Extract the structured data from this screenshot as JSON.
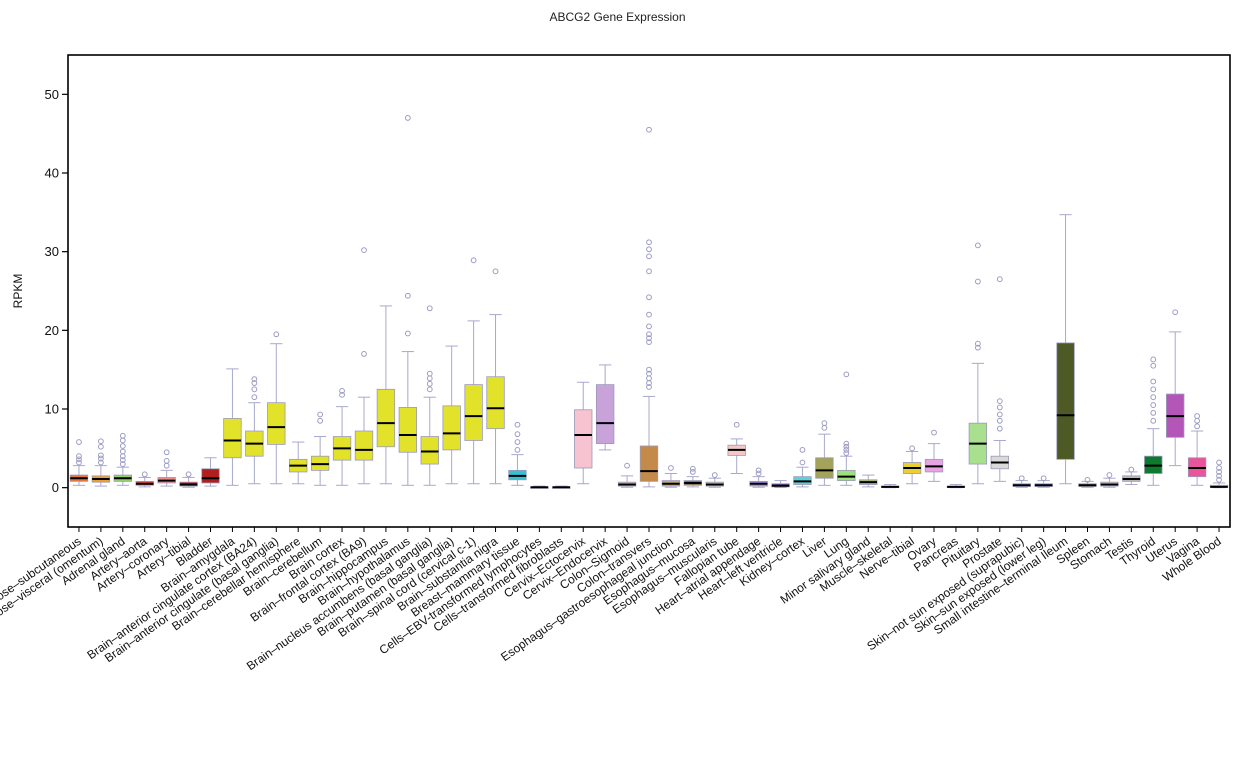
{
  "chart_data": {
    "type": "box",
    "title": "ABCG2 Gene Expression",
    "ylabel": "RPKM",
    "xlabel": "",
    "ylim": [
      -5,
      55
    ],
    "yticks": [
      0,
      10,
      20,
      30,
      40,
      50
    ],
    "grid": false,
    "legend": "none",
    "boxes": [
      {
        "label": "Adipose–subcutaneous",
        "q1": 0.8,
        "median": 1.2,
        "q3": 1.6,
        "whisker_low": 0.3,
        "whisker_high": 2.8,
        "outliers": [
          3.2,
          3.6,
          4.0,
          5.8
        ],
        "color": "#e8743b"
      },
      {
        "label": "Adipose–visceral (omentum)",
        "q1": 0.7,
        "median": 1.1,
        "q3": 1.5,
        "whisker_low": 0.2,
        "whisker_high": 2.8,
        "outliers": [
          3.2,
          3.7,
          4.1,
          5.2,
          5.9
        ],
        "color": "#f0a030"
      },
      {
        "label": "Adrenal gland",
        "q1": 0.8,
        "median": 1.2,
        "q3": 1.6,
        "whisker_low": 0.3,
        "whisker_high": 2.6,
        "outliers": [
          3.0,
          3.5,
          4.0,
          4.6,
          5.3,
          6.0,
          6.6
        ],
        "color": "#8fd16a"
      },
      {
        "label": "Artery–aorta",
        "q1": 0.3,
        "median": 0.5,
        "q3": 0.8,
        "whisker_low": 0.1,
        "whisker_high": 1.3,
        "outliers": [
          1.7
        ],
        "color": "#e04848"
      },
      {
        "label": "Artery–coronary",
        "q1": 0.6,
        "median": 0.9,
        "q3": 1.3,
        "whisker_low": 0.2,
        "whisker_high": 2.2,
        "outliers": [
          2.8,
          3.4,
          4.5
        ],
        "color": "#ee8a8a"
      },
      {
        "label": "Artery–tibial",
        "q1": 0.2,
        "median": 0.4,
        "q3": 0.7,
        "whisker_low": 0.05,
        "whisker_high": 1.3,
        "outliers": [
          1.7
        ],
        "color": "#cc2222"
      },
      {
        "label": "Bladder",
        "q1": 0.6,
        "median": 1.2,
        "q3": 2.4,
        "whisker_low": 0.2,
        "whisker_high": 3.8,
        "outliers": [],
        "color": "#b01e1e"
      },
      {
        "label": "Brain–amygdala",
        "q1": 3.8,
        "median": 6.0,
        "q3": 8.8,
        "whisker_low": 0.3,
        "whisker_high": 15.1,
        "outliers": [],
        "color": "#e2e22a"
      },
      {
        "label": "Brain–anterior cingulate cortex (BA24)",
        "q1": 4.0,
        "median": 5.6,
        "q3": 7.2,
        "whisker_low": 0.5,
        "whisker_high": 10.8,
        "outliers": [
          11.5,
          12.5,
          13.3,
          13.8
        ],
        "color": "#e2e22a"
      },
      {
        "label": "Brain–anterior cingulate (basal ganglia)",
        "q1": 5.5,
        "median": 7.7,
        "q3": 10.8,
        "whisker_low": 0.5,
        "whisker_high": 18.3,
        "outliers": [
          19.5
        ],
        "color": "#e2e22a"
      },
      {
        "label": "Brain–cerebellar hemisphere",
        "q1": 2.0,
        "median": 2.8,
        "q3": 3.6,
        "whisker_low": 0.5,
        "whisker_high": 5.8,
        "outliers": [],
        "color": "#e2e22a"
      },
      {
        "label": "Brain–cerebellum",
        "q1": 2.2,
        "median": 3.0,
        "q3": 4.0,
        "whisker_low": 0.3,
        "whisker_high": 6.5,
        "outliers": [
          8.5,
          9.3
        ],
        "color": "#e2e22a"
      },
      {
        "label": "Brain cortex",
        "q1": 3.5,
        "median": 5.0,
        "q3": 6.5,
        "whisker_low": 0.3,
        "whisker_high": 10.3,
        "outliers": [
          11.8,
          12.3
        ],
        "color": "#e2e22a"
      },
      {
        "label": "Brain–frontal cortex (BA9)",
        "q1": 3.5,
        "median": 4.8,
        "q3": 7.2,
        "whisker_low": 0.5,
        "whisker_high": 11.5,
        "outliers": [
          17.0,
          30.2
        ],
        "color": "#e2e22a"
      },
      {
        "label": "Brain–hippocampus",
        "q1": 5.2,
        "median": 8.2,
        "q3": 12.5,
        "whisker_low": 0.5,
        "whisker_high": 23.1,
        "outliers": [],
        "color": "#e2e22a"
      },
      {
        "label": "Brain–hypothalamus",
        "q1": 4.5,
        "median": 6.7,
        "q3": 10.2,
        "whisker_low": 0.3,
        "whisker_high": 17.3,
        "outliers": [
          19.6,
          24.4,
          47.0
        ],
        "color": "#e2e22a"
      },
      {
        "label": "Brain–nucleus accumbens (basal ganglia)",
        "q1": 3.0,
        "median": 4.6,
        "q3": 6.5,
        "whisker_low": 0.3,
        "whisker_high": 11.5,
        "outliers": [
          12.5,
          13.2,
          13.9,
          14.5,
          22.8
        ],
        "color": "#e2e22a"
      },
      {
        "label": "Brain–putamen (basal ganglia)",
        "q1": 4.8,
        "median": 6.9,
        "q3": 10.4,
        "whisker_low": 0.5,
        "whisker_high": 18.0,
        "outliers": [],
        "color": "#e2e22a"
      },
      {
        "label": "Brain–spinal cord (cervical c-1)",
        "q1": 6.0,
        "median": 9.1,
        "q3": 13.1,
        "whisker_low": 0.5,
        "whisker_high": 21.2,
        "outliers": [
          28.9
        ],
        "color": "#e2e22a"
      },
      {
        "label": "Brain–substantia nigra",
        "q1": 7.5,
        "median": 10.1,
        "q3": 14.1,
        "whisker_low": 0.5,
        "whisker_high": 22.0,
        "outliers": [
          27.5
        ],
        "color": "#e2e22a"
      },
      {
        "label": "Breast–mammary tissue",
        "q1": 1.0,
        "median": 1.5,
        "q3": 2.2,
        "whisker_low": 0.3,
        "whisker_high": 4.2,
        "outliers": [
          4.8,
          5.8,
          6.8,
          8.0
        ],
        "color": "#33c3d6"
      },
      {
        "label": "Cells–EBV-transformed lymphocytes",
        "q1": 0.0,
        "median": 0.05,
        "q3": 0.1,
        "whisker_low": 0.0,
        "whisker_high": 0.2,
        "outliers": [],
        "color": "#c58adf"
      },
      {
        "label": "Cells–transformed fibroblasts",
        "q1": 0.0,
        "median": 0.05,
        "q3": 0.1,
        "whisker_low": 0.0,
        "whisker_high": 0.2,
        "outliers": [],
        "color": "#7aa6e0"
      },
      {
        "label": "Cervix–Ectocervix",
        "q1": 2.5,
        "median": 6.7,
        "q3": 9.9,
        "whisker_low": 0.5,
        "whisker_high": 13.4,
        "outliers": [],
        "color": "#f7c3d1"
      },
      {
        "label": "Cervix–Endocervix",
        "q1": 5.6,
        "median": 8.2,
        "q3": 13.1,
        "whisker_low": 4.8,
        "whisker_high": 15.6,
        "outliers": [],
        "color": "#c8a2d8"
      },
      {
        "label": "Colon–Sigmoid",
        "q1": 0.2,
        "median": 0.4,
        "q3": 0.7,
        "whisker_low": 0.05,
        "whisker_high": 1.5,
        "outliers": [
          2.8
        ],
        "color": "#d9b99b"
      },
      {
        "label": "Colon–transvers",
        "q1": 0.8,
        "median": 2.1,
        "q3": 5.3,
        "whisker_low": 0.1,
        "whisker_high": 11.6,
        "outliers": [
          12.8,
          13.3,
          13.9,
          14.5,
          15.0,
          18.5,
          19.0,
          19.5,
          20.5,
          22.0,
          24.2,
          27.5,
          29.4,
          30.3,
          31.2,
          45.5
        ],
        "color": "#c48a4a"
      },
      {
        "label": "Esophagus–gastroesophageal junction",
        "q1": 0.2,
        "median": 0.5,
        "q3": 0.9,
        "whisker_low": 0.05,
        "whisker_high": 1.8,
        "outliers": [
          2.5
        ],
        "color": "#c9a86a"
      },
      {
        "label": "Esophagus–mucosa",
        "q1": 0.3,
        "median": 0.6,
        "q3": 0.9,
        "whisker_low": 0.1,
        "whisker_high": 1.4,
        "outliers": [
          2.0,
          2.4
        ],
        "color": "#8a7a4a"
      },
      {
        "label": "Esophagus–muscularis",
        "q1": 0.2,
        "median": 0.4,
        "q3": 0.7,
        "whisker_low": 0.05,
        "whisker_high": 1.2,
        "outliers": [
          1.6
        ],
        "color": "#d9c7a0"
      },
      {
        "label": "Fallopian tube",
        "q1": 4.1,
        "median": 4.8,
        "q3": 5.4,
        "whisker_low": 1.8,
        "whisker_high": 6.2,
        "outliers": [
          8.0
        ],
        "color": "#f5c8c8"
      },
      {
        "label": "Heart–atrial appendage",
        "q1": 0.2,
        "median": 0.5,
        "q3": 0.8,
        "whisker_low": 0.05,
        "whisker_high": 1.4,
        "outliers": [
          1.8,
          2.2
        ],
        "color": "#a68ad6"
      },
      {
        "label": "Heart–left ventricle",
        "q1": 0.1,
        "median": 0.25,
        "q3": 0.5,
        "whisker_low": 0.02,
        "whisker_high": 0.9,
        "outliers": [],
        "color": "#6a3fa0"
      },
      {
        "label": "Kidney–cortex",
        "q1": 0.4,
        "median": 0.8,
        "q3": 1.4,
        "whisker_low": 0.1,
        "whisker_high": 2.6,
        "outliers": [
          3.2,
          4.8
        ],
        "color": "#5fd0d6"
      },
      {
        "label": "Liver",
        "q1": 1.2,
        "median": 2.2,
        "q3": 3.8,
        "whisker_low": 0.3,
        "whisker_high": 6.8,
        "outliers": [
          7.6,
          8.2
        ],
        "color": "#a3a35a"
      },
      {
        "label": "Lung",
        "q1": 0.9,
        "median": 1.4,
        "q3": 2.2,
        "whisker_low": 0.3,
        "whisker_high": 4.0,
        "outliers": [
          4.4,
          4.8,
          5.2,
          5.6,
          14.4
        ],
        "color": "#9be07a"
      },
      {
        "label": "Minor salivary gland",
        "q1": 0.4,
        "median": 0.7,
        "q3": 1.0,
        "whisker_low": 0.1,
        "whisker_high": 1.6,
        "outliers": [],
        "color": "#a3b870"
      },
      {
        "label": "Muscle–skeletal",
        "q1": 0.05,
        "median": 0.1,
        "q3": 0.2,
        "whisker_low": 0.0,
        "whisker_high": 0.4,
        "outliers": [],
        "color": "#a68ad6"
      },
      {
        "label": "Nerve–tibial",
        "q1": 1.8,
        "median": 2.5,
        "q3": 3.2,
        "whisker_low": 0.5,
        "whisker_high": 4.6,
        "outliers": [
          5.0
        ],
        "color": "#e8d030"
      },
      {
        "label": "Ovary",
        "q1": 2.0,
        "median": 2.7,
        "q3": 3.6,
        "whisker_low": 0.8,
        "whisker_high": 5.6,
        "outliers": [
          7.0
        ],
        "color": "#e6a4e0"
      },
      {
        "label": "Pancreas",
        "q1": 0.05,
        "median": 0.1,
        "q3": 0.2,
        "whisker_low": 0.0,
        "whisker_high": 0.4,
        "outliers": [],
        "color": "#a3a35a"
      },
      {
        "label": "Pituitary",
        "q1": 3.0,
        "median": 5.6,
        "q3": 8.2,
        "whisker_low": 0.5,
        "whisker_high": 15.8,
        "outliers": [
          17.8,
          18.3,
          26.2,
          30.8
        ],
        "color": "#a8e090"
      },
      {
        "label": "Prostate",
        "q1": 2.4,
        "median": 3.2,
        "q3": 4.0,
        "whisker_low": 0.8,
        "whisker_high": 6.0,
        "outliers": [
          7.5,
          8.5,
          9.3,
          10.2,
          11.0,
          26.5
        ],
        "color": "#d9d9d9"
      },
      {
        "label": "Skin–not sun exposed (suprapubic)",
        "q1": 0.15,
        "median": 0.3,
        "q3": 0.5,
        "whisker_low": 0.05,
        "whisker_high": 0.9,
        "outliers": [
          1.2
        ],
        "color": "#7aa6e0"
      },
      {
        "label": "Skin–sun exposed (lower leg)",
        "q1": 0.15,
        "median": 0.3,
        "q3": 0.5,
        "whisker_low": 0.05,
        "whisker_high": 0.9,
        "outliers": [
          1.2
        ],
        "color": "#5a7ad6"
      },
      {
        "label": "Small intestine–terminal Ileum",
        "q1": 3.6,
        "median": 9.2,
        "q3": 18.4,
        "whisker_low": 0.5,
        "whisker_high": 34.7,
        "outliers": [],
        "color": "#4d5a25"
      },
      {
        "label": "Spleen",
        "q1": 0.15,
        "median": 0.3,
        "q3": 0.5,
        "whisker_low": 0.05,
        "whisker_high": 0.8,
        "outliers": [
          1.0
        ],
        "color": "#8a9a4a"
      },
      {
        "label": "Stomach",
        "q1": 0.2,
        "median": 0.4,
        "q3": 0.7,
        "whisker_low": 0.05,
        "whisker_high": 1.2,
        "outliers": [
          1.6
        ],
        "color": "#d9c7a0"
      },
      {
        "label": "Testis",
        "q1": 0.8,
        "median": 1.1,
        "q3": 1.5,
        "whisker_low": 0.4,
        "whisker_high": 2.0,
        "outliers": [
          2.3
        ],
        "color": "#b8b8b8"
      },
      {
        "label": "Thyroid",
        "q1": 1.8,
        "median": 2.8,
        "q3": 4.0,
        "whisker_low": 0.3,
        "whisker_high": 7.5,
        "outliers": [
          8.5,
          9.5,
          10.5,
          11.5,
          12.5,
          13.5,
          15.5,
          16.3
        ],
        "color": "#0e7a2e"
      },
      {
        "label": "Uterus",
        "q1": 6.4,
        "median": 9.1,
        "q3": 11.9,
        "whisker_low": 2.8,
        "whisker_high": 19.8,
        "outliers": [
          22.3
        ],
        "color": "#b455b8"
      },
      {
        "label": "Vagina",
        "q1": 1.4,
        "median": 2.5,
        "q3": 3.8,
        "whisker_low": 0.3,
        "whisker_high": 7.2,
        "outliers": [
          7.8,
          8.5,
          9.1
        ],
        "color": "#e8559a"
      },
      {
        "label": "Whole Blood",
        "q1": 0.05,
        "median": 0.1,
        "q3": 0.3,
        "whisker_low": 0.0,
        "whisker_high": 0.6,
        "outliers": [
          1.0,
          1.5,
          2.0,
          2.5,
          3.2
        ],
        "color": "#e0b0e0"
      }
    ]
  }
}
